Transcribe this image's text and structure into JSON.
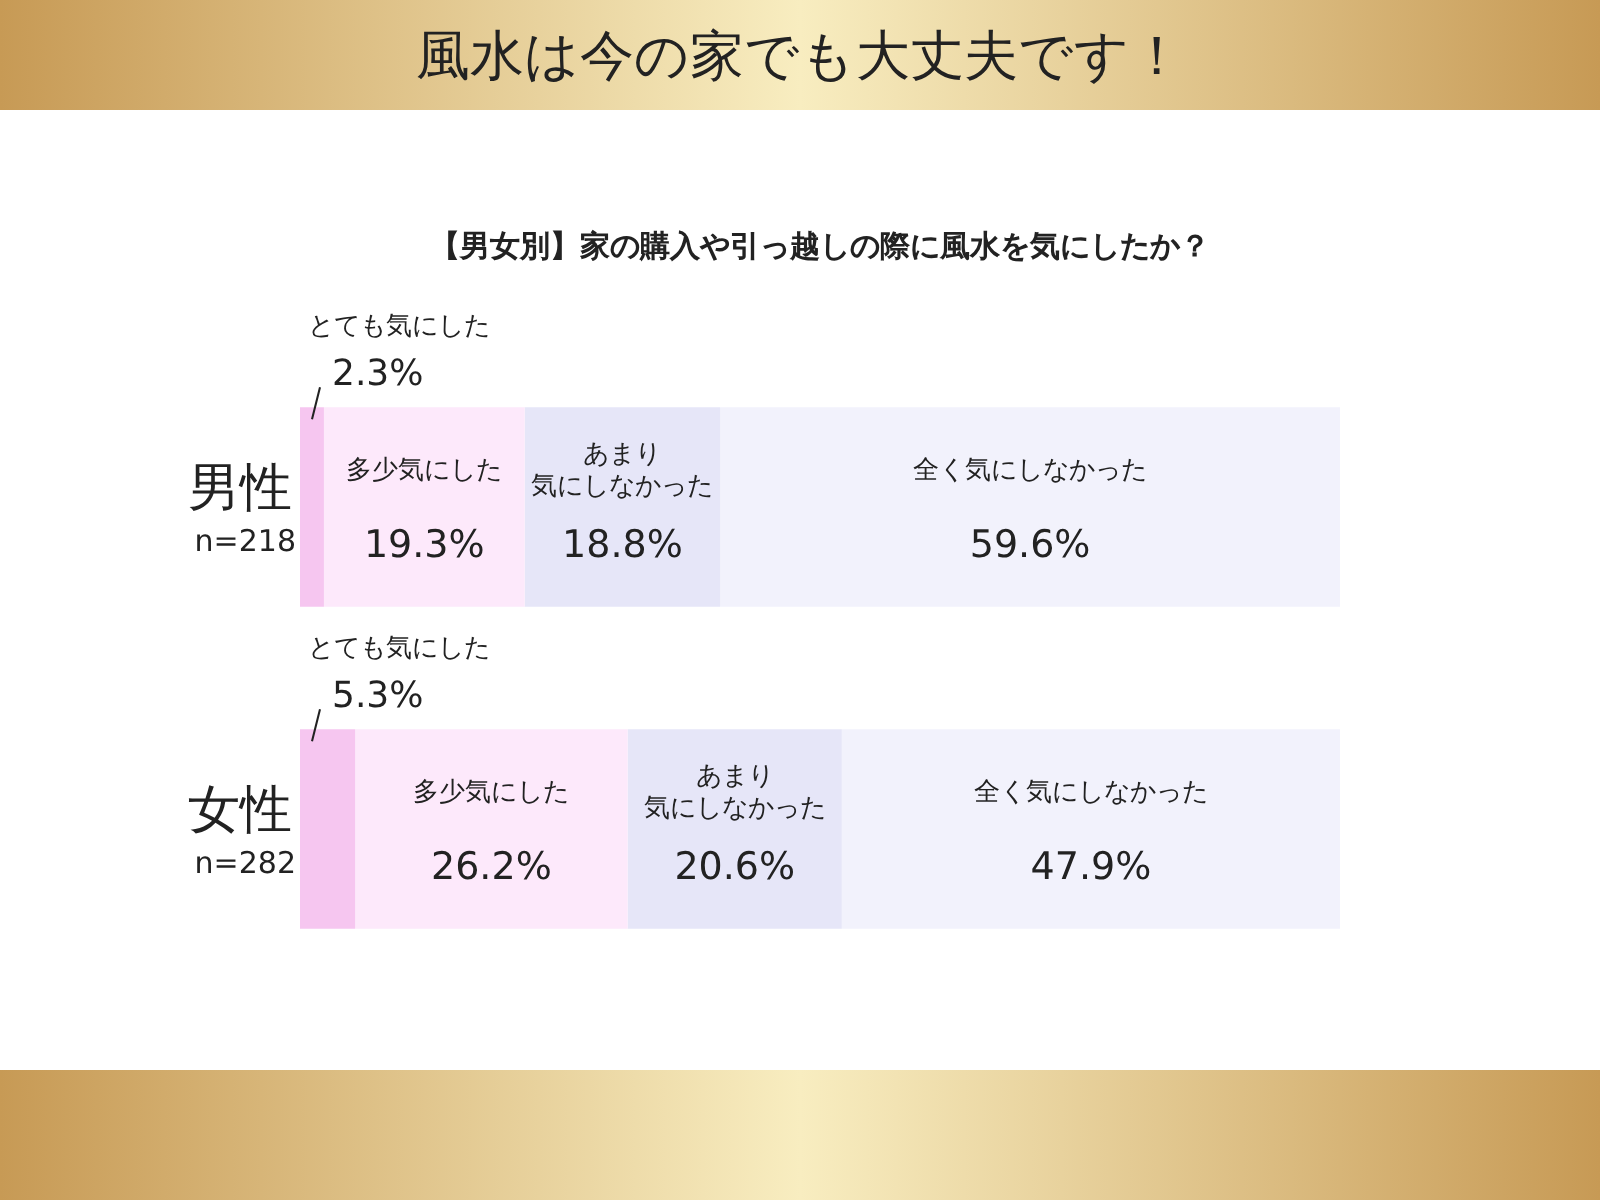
{
  "chart_data": {
    "type": "bar",
    "orientation": "horizontal",
    "stacked": true,
    "title": "風水は今の家でも大丈夫です！",
    "subtitle": "【男女別】家の購入や引っ越しの際に風水を気にしたか？",
    "categories": [
      "男性\nn=218",
      "女性\nn=282"
    ],
    "series": [
      {
        "name": "とても気にした",
        "color": "#f6c6f0",
        "values": [
          2.3,
          5.3
        ],
        "value_labels": [
          "2.3%",
          "5.3%"
        ]
      },
      {
        "name": "多少気にした",
        "color": "#fde9fb",
        "values": [
          19.3,
          26.2
        ],
        "value_labels": [
          "19.3%",
          "26.2%"
        ]
      },
      {
        "name": "あまり気にしなかった",
        "color": "#e6e6f8",
        "values": [
          18.8,
          20.6
        ],
        "value_labels": [
          "18.8%",
          "20.6%"
        ]
      },
      {
        "name": "全く気にしなかった",
        "color": "#f2f2fc",
        "values": [
          59.6,
          47.9
        ],
        "value_labels": [
          "59.6%",
          "47.9%"
        ]
      }
    ],
    "legend": false,
    "tick_labels": false
  }
}
